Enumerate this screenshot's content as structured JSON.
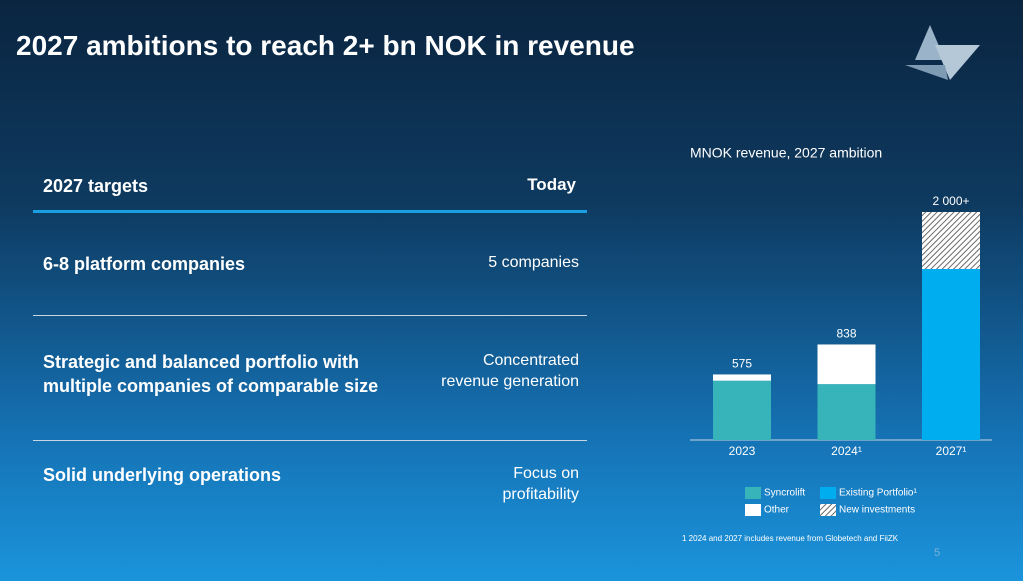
{
  "header": {
    "title": "2027 ambitions to reach 2+ bn NOK in revenue"
  },
  "table": {
    "header": [
      "2027 targets",
      "Today"
    ],
    "rows": [
      [
        "6-8 platform companies",
        "5 companies"
      ],
      [
        "Strategic and balanced portfolio with multiple companies of comparable size",
        "Concentrated revenue generation"
      ],
      [
        "Solid underlying operations",
        "Focus on profitability"
      ]
    ]
  },
  "chart_data": {
    "type": "stacked-bar",
    "title": "MNOK revenue, 2027 ambition",
    "categories": [
      "2023",
      "2024¹",
      "2027¹"
    ],
    "series": [
      {
        "name": "Syncrolift",
        "color": "#36b4b9",
        "values": [
          520,
          490,
          null
        ]
      },
      {
        "name": "Other",
        "color": "#ffffff",
        "values": [
          55,
          348,
          null
        ]
      },
      {
        "name": "Existing Portfolio¹",
        "color": "#00aeef",
        "values": [
          null,
          null,
          1500
        ]
      },
      {
        "name": "New investments",
        "color": "#6a6a6a",
        "hatched": true,
        "values": [
          null,
          null,
          500
        ]
      }
    ],
    "totals": [
      575,
      838,
      2000
    ],
    "total_labels": [
      "575",
      "838",
      "2 000+"
    ],
    "ylim": [
      0,
      2000
    ]
  },
  "footnote": "1 2024 and 2027 includes revenue from Globetech and FiiZK",
  "page_number": "5"
}
